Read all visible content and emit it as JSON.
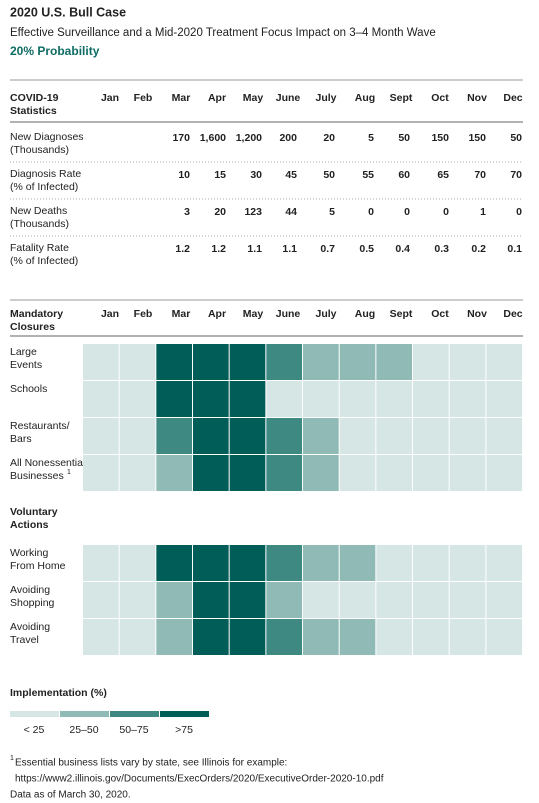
{
  "header": {
    "title": "2020 U.S. Bull Case",
    "subtitle": "Effective Surveillance and a Mid-2020 Treatment Focus Impact on 3–4 Month Wave",
    "probability": "20% Probability"
  },
  "stats_table": {
    "heading": [
      "COVID-19",
      "Statistics"
    ],
    "columns": [
      "Jan",
      "Feb",
      "Mar",
      "Apr",
      "May",
      "June",
      "July",
      "Aug",
      "Sept",
      "Oct",
      "Nov",
      "Dec"
    ],
    "rows": [
      {
        "label": [
          "New Diagnoses",
          "(Thousands)"
        ],
        "cells": [
          null,
          null,
          "170",
          "1,600",
          "1,200",
          "200",
          "20",
          "5",
          "50",
          "150",
          "150",
          "50"
        ]
      },
      {
        "label": [
          "Diagnosis Rate",
          "(% of Infected)"
        ],
        "cells": [
          null,
          null,
          "10",
          "15",
          "30",
          "45",
          "50",
          "55",
          "60",
          "65",
          "70",
          "70"
        ]
      },
      {
        "label": [
          "New Deaths",
          "(Thousands)"
        ],
        "cells": [
          null,
          null,
          "3",
          "20",
          "123",
          "44",
          "5",
          "0",
          "0",
          "0",
          "1",
          "0"
        ]
      },
      {
        "label": [
          "Fatality Rate",
          "(% of Infected)"
        ],
        "cells": [
          null,
          null,
          "1.2",
          "1.2",
          "1.1",
          "1.1",
          "0.7",
          "0.5",
          "0.4",
          "0.3",
          "0.2",
          "0.1"
        ]
      }
    ]
  },
  "heatmap": {
    "heading": [
      "Mandatory",
      "Closures"
    ],
    "columns": [
      "Jan",
      "Feb",
      "Mar",
      "Apr",
      "May",
      "June",
      "July",
      "Aug",
      "Sept",
      "Oct",
      "Nov",
      "Dec"
    ],
    "groups": [
      {
        "rows": [
          {
            "label": [
              "Large",
              "Events"
            ],
            "levels": [
              0,
              0,
              3,
              3,
              3,
              2,
              1,
              1,
              1,
              0,
              0,
              0
            ]
          },
          {
            "label": [
              "Schools"
            ],
            "levels": [
              0,
              0,
              3,
              3,
              3,
              0,
              0,
              0,
              0,
              0,
              0,
              0
            ]
          },
          {
            "label": [
              "Restaurants/",
              "Bars"
            ],
            "levels": [
              0,
              0,
              2,
              3,
              3,
              2,
              1,
              0,
              0,
              0,
              0,
              0
            ]
          },
          {
            "label": [
              "All Nonessential",
              "Businesses"
            ],
            "footnote_mark": "1",
            "levels": [
              0,
              0,
              1,
              3,
              3,
              2,
              1,
              0,
              0,
              0,
              0,
              0
            ]
          }
        ]
      },
      {
        "heading": [
          "Voluntary",
          "Actions"
        ],
        "rows": [
          {
            "label": [
              "Working",
              "From Home"
            ],
            "levels": [
              0,
              0,
              3,
              3,
              3,
              2,
              1,
              1,
              0,
              0,
              0,
              0
            ]
          },
          {
            "label": [
              "Avoiding",
              "Shopping"
            ],
            "levels": [
              0,
              0,
              1,
              3,
              3,
              1,
              0,
              0,
              0,
              0,
              0,
              0
            ]
          },
          {
            "label": [
              "Avoiding",
              "Travel"
            ],
            "levels": [
              0,
              0,
              1,
              3,
              3,
              2,
              1,
              1,
              0,
              0,
              0,
              0
            ]
          }
        ]
      }
    ]
  },
  "legend": {
    "title": "Implementation (%)",
    "items": [
      {
        "label": "< 25",
        "color": "#d6e6e4"
      },
      {
        "label": "25–50",
        "color": "#8fbab6"
      },
      {
        "label": "50–75",
        "color": "#3e8a83"
      },
      {
        "label": ">75",
        "color": "#005d57"
      }
    ]
  },
  "footnote": {
    "mark": "1",
    "lines": [
      "Essential business lists vary by state, see Illinois for example:",
      "https://www2.illinois.gov/Documents/ExecOrders/2020/ExecutiveOrder-2020-10.pdf",
      "Data as of March 30, 2020."
    ]
  }
}
